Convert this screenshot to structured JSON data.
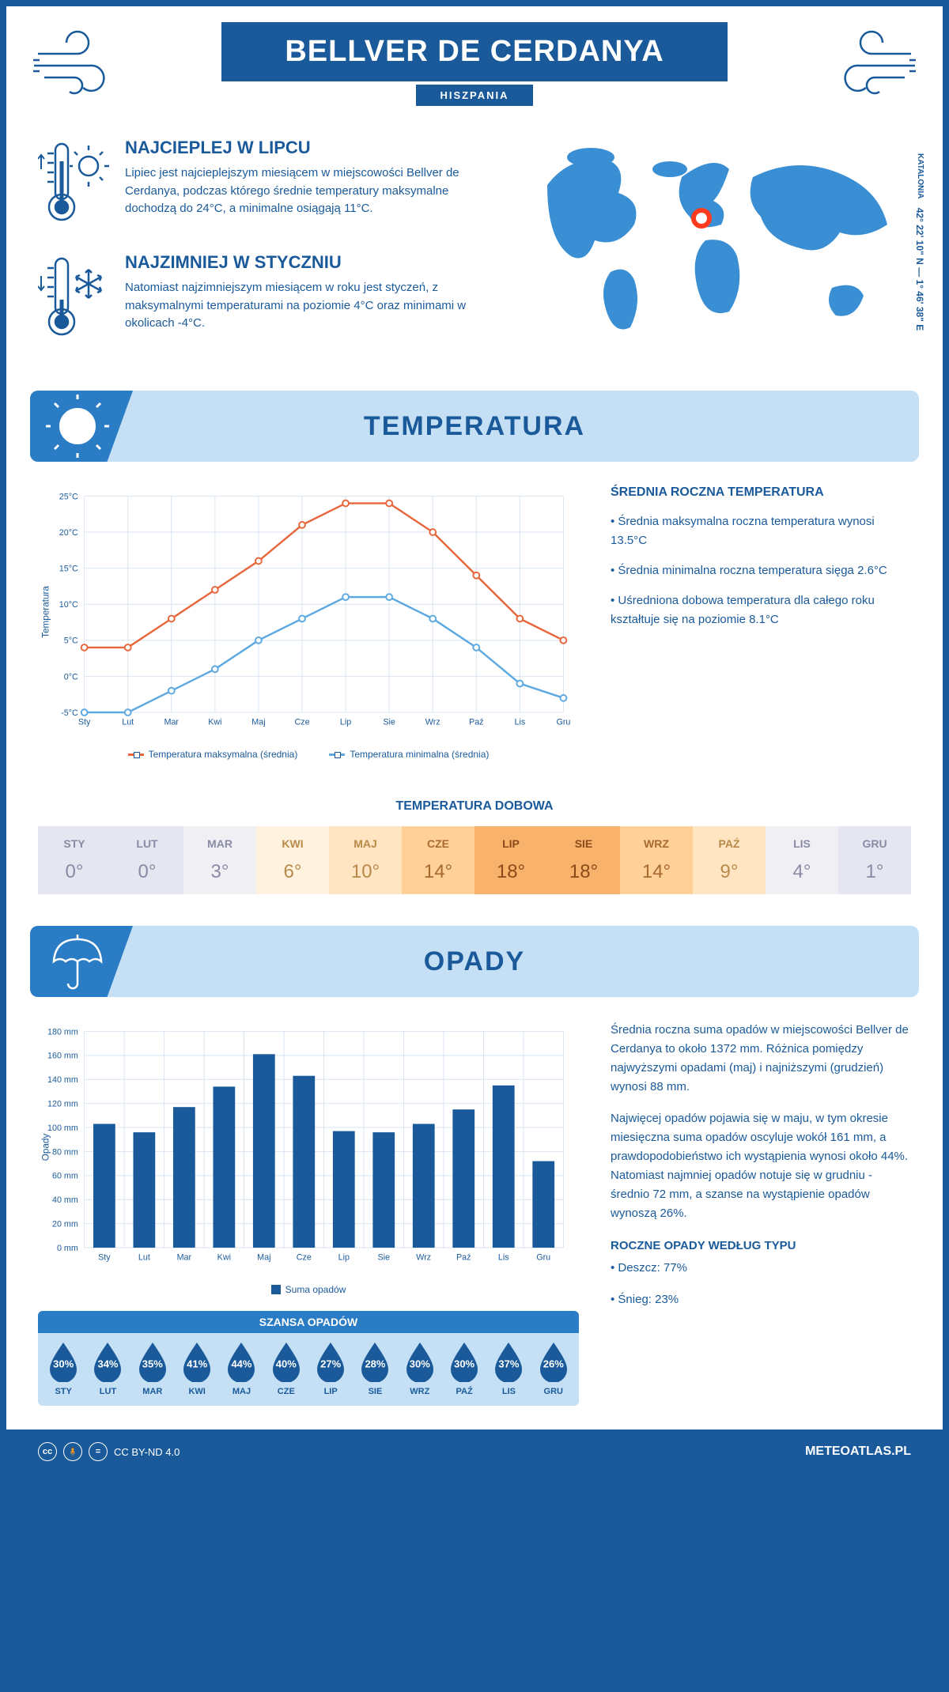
{
  "header": {
    "title": "BELLVER DE CERDANYA",
    "subtitle": "HISZPANIA"
  },
  "coords": {
    "region": "KATALONIA",
    "lat": "42° 22' 10\" N",
    "lon": "1° 46' 38\" E"
  },
  "intro": {
    "warm": {
      "title": "NAJCIEPLEJ W LIPCU",
      "text": "Lipiec jest najcieplejszym miesiącem w miejscowości Bellver de Cerdanya, podczas którego średnie temperatury maksymalne dochodzą do 24°C, a minimalne osiągają 11°C."
    },
    "cold": {
      "title": "NAJZIMNIEJ W STYCZNIU",
      "text": "Natomiast najzimniejszym miesiącem w roku jest styczeń, z maksymalnymi temperaturami na poziomie 4°C oraz minimami w okolicach -4°C."
    }
  },
  "sections": {
    "temperature": "TEMPERATURA",
    "precipitation": "OPADY"
  },
  "temp_chart": {
    "type": "line",
    "months": [
      "Sty",
      "Lut",
      "Mar",
      "Kwi",
      "Maj",
      "Cze",
      "Lip",
      "Sie",
      "Wrz",
      "Paź",
      "Lis",
      "Gru"
    ],
    "max_series": [
      4,
      4,
      8,
      12,
      16,
      21,
      24,
      24,
      20,
      14,
      8,
      5
    ],
    "min_series": [
      -5,
      -5,
      -2,
      1,
      5,
      8,
      11,
      11,
      8,
      4,
      -1,
      -3
    ],
    "max_color": "#e8663c",
    "min_color": "#5da9e0",
    "ylim": [
      -5,
      25
    ],
    "ytick_step": 5,
    "ytick_suffix": "°C",
    "y_title": "Temperatura",
    "grid_color": "#d8e4f0",
    "legend_max": "Temperatura maksymalna (średnia)",
    "legend_min": "Temperatura minimalna (średnia)"
  },
  "temp_side": {
    "heading": "ŚREDNIA ROCZNA TEMPERATURA",
    "bullet1": "• Średnia maksymalna roczna temperatura wynosi 13.5°C",
    "bullet2": "• Średnia minimalna roczna temperatura sięga 2.6°C",
    "bullet3": "• Uśredniona dobowa temperatura dla całego roku kształtuje się na poziomie 8.1°C"
  },
  "daily_temp": {
    "title": "TEMPERATURA DOBOWA",
    "months": [
      "STY",
      "LUT",
      "MAR",
      "KWI",
      "MAJ",
      "CZE",
      "LIP",
      "SIE",
      "WRZ",
      "PAŹ",
      "LIS",
      "GRU"
    ],
    "values": [
      "0°",
      "0°",
      "3°",
      "6°",
      "10°",
      "14°",
      "18°",
      "18°",
      "14°",
      "9°",
      "4°",
      "1°"
    ],
    "bg_colors": [
      "#e6e6f0",
      "#e6e6f0",
      "#f0f0f4",
      "#fff3e0",
      "#ffe5c2",
      "#ffd199",
      "#f9b26b",
      "#f9b26b",
      "#ffd199",
      "#ffe5c2",
      "#f0f0f4",
      "#e6e6f0"
    ],
    "text_colors": [
      "#8a8aa5",
      "#8a8aa5",
      "#8a8aa5",
      "#b88a4a",
      "#b88a4a",
      "#a6692e",
      "#8a4a1a",
      "#8a4a1a",
      "#a6692e",
      "#b88a4a",
      "#8a8aa5",
      "#8a8aa5"
    ]
  },
  "precip_chart": {
    "type": "bar",
    "months": [
      "Sty",
      "Lut",
      "Mar",
      "Kwi",
      "Maj",
      "Cze",
      "Lip",
      "Sie",
      "Wrz",
      "Paź",
      "Lis",
      "Gru"
    ],
    "values": [
      103,
      96,
      117,
      134,
      161,
      143,
      97,
      96,
      103,
      115,
      135,
      72
    ],
    "bar_color": "#1a5a9a",
    "ylim": [
      0,
      180
    ],
    "ytick_step": 20,
    "ytick_suffix": " mm",
    "y_title": "Opady",
    "grid_color": "#d8e4f0",
    "legend": "Suma opadów"
  },
  "precip_side": {
    "p1": "Średnia roczna suma opadów w miejscowości Bellver de Cerdanya to około 1372 mm. Różnica pomiędzy najwyższymi opadami (maj) i najniższymi (grudzień) wynosi 88 mm.",
    "p2": "Najwięcej opadów pojawia się w maju, w tym okresie miesięczna suma opadów oscyluje wokół 161 mm, a prawdopodobieństwo ich wystąpienia wynosi około 44%. Natomiast najmniej opadów notuje się w grudniu - średnio 72 mm, a szanse na wystąpienie opadów wynoszą 26%.",
    "type_heading": "ROCZNE OPADY WEDŁUG TYPU",
    "type_rain": "• Deszcz: 77%",
    "type_snow": "• Śnieg: 23%"
  },
  "chance": {
    "title": "SZANSA OPADÓW",
    "months": [
      "STY",
      "LUT",
      "MAR",
      "KWI",
      "MAJ",
      "CZE",
      "LIP",
      "SIE",
      "WRZ",
      "PAŹ",
      "LIS",
      "GRU"
    ],
    "values": [
      "30%",
      "34%",
      "35%",
      "41%",
      "44%",
      "40%",
      "27%",
      "28%",
      "30%",
      "30%",
      "37%",
      "26%"
    ],
    "drop_color": "#1a5a9a"
  },
  "footer": {
    "license": "CC BY-ND 4.0",
    "site": "METEOATLAS.PL"
  },
  "colors": {
    "primary": "#1a5a9a",
    "light_blue": "#c5e0f5",
    "mid_blue": "#2a7cc4",
    "map_blue": "#3a8fd4",
    "marker": "#ff3b1f"
  }
}
